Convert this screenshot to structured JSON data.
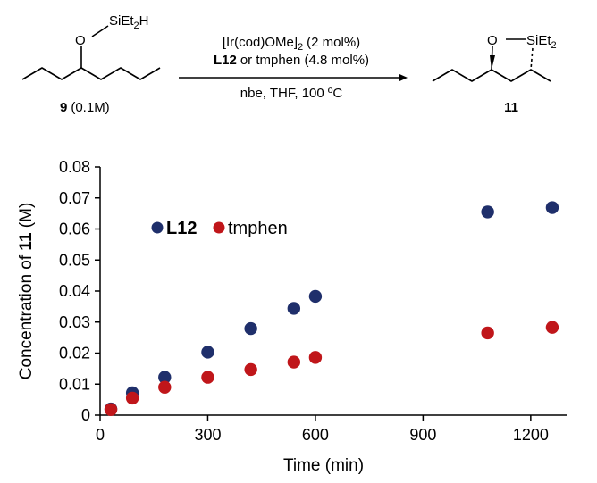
{
  "scheme": {
    "substrate": {
      "silyl_group": "SiEt",
      "silyl_sub": "2",
      "silyl_tail": "H",
      "oxygen": "O",
      "label_number": "9",
      "label_conc": "(0.1M)"
    },
    "conditions": {
      "line1_a": "[Ir(cod)OMe]",
      "line1_sub": "2",
      "line1_b": "(2 mol%)",
      "line2_bold": "L12",
      "line2_rest": "or tmphen (4.8 mol%)",
      "line3": "nbe, THF, 100 ºC"
    },
    "product": {
      "oxygen": "O",
      "silyl_group": "SiEt",
      "silyl_sub": "2",
      "label_number": "11"
    }
  },
  "chart_data": {
    "type": "scatter",
    "xlabel": "Time (min)",
    "ylabel_prefix": "Concentration of ",
    "ylabel_bold": "11",
    "ylabel_suffix": " (M)",
    "xlim": [
      0,
      1300
    ],
    "ylim": [
      0,
      0.08
    ],
    "xticks": [
      0,
      300,
      600,
      900,
      1200
    ],
    "yticks": [
      0,
      0.01,
      0.02,
      0.03,
      0.04,
      0.05,
      0.06,
      0.07,
      0.08
    ],
    "xtick_labels": [
      "0",
      "300",
      "600",
      "900",
      "1200"
    ],
    "ytick_labels": [
      "0",
      "0.01",
      "0.02",
      "0.03",
      "0.04",
      "0.05",
      "0.06",
      "0.07",
      "0.08"
    ],
    "grid": false,
    "legend_position": "upper-left",
    "series": [
      {
        "name": "L12",
        "color": "#1f2f6b",
        "bold": true,
        "x": [
          30,
          90,
          180,
          300,
          420,
          540,
          600,
          1080,
          1260
        ],
        "y": [
          0.002,
          0.0072,
          0.0122,
          0.0203,
          0.0279,
          0.0344,
          0.0383,
          0.0655,
          0.0669
        ]
      },
      {
        "name": "tmphen",
        "color": "#c0161a",
        "bold": false,
        "x": [
          30,
          90,
          180,
          300,
          420,
          540,
          600,
          1080,
          1260
        ],
        "y": [
          0.0018,
          0.0055,
          0.009,
          0.0122,
          0.0147,
          0.0171,
          0.0186,
          0.0265,
          0.0283
        ]
      }
    ]
  }
}
